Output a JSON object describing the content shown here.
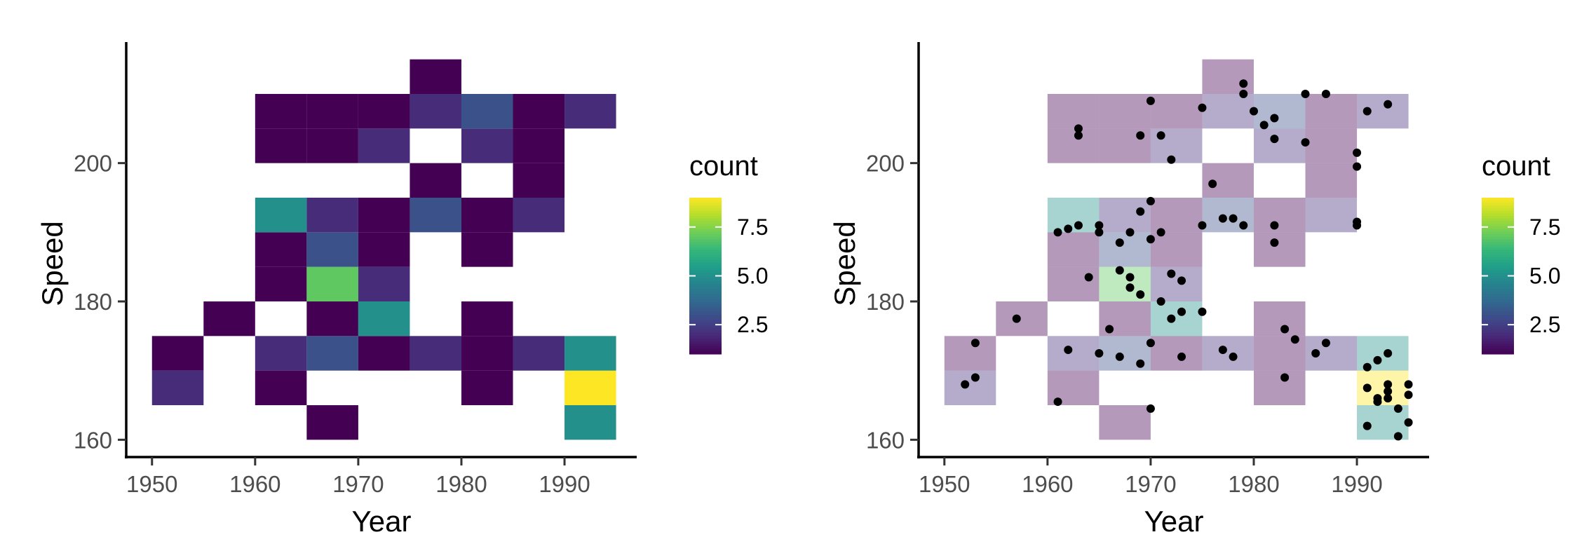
{
  "chart_data": [
    {
      "type": "heatmap",
      "xlabel": "Year",
      "ylabel": "Speed",
      "x_ticks": [
        1950,
        1960,
        1970,
        1980,
        1990
      ],
      "y_ticks": [
        160,
        180,
        200
      ],
      "xlim": [
        1947.5,
        1997
      ],
      "ylim": [
        157.5,
        217.5
      ],
      "bin_width_x": 5,
      "bin_height_y": 5,
      "legend": {
        "title": "count",
        "labels": [
          "2.5",
          "5.0",
          "7.5"
        ],
        "values": [
          2.5,
          5.0,
          7.5
        ],
        "range": [
          1,
          9
        ],
        "palette": "viridis"
      },
      "grid": false,
      "bins": [
        {
          "x": 1950,
          "y": 165,
          "count": 2
        },
        {
          "x": 1950,
          "y": 170,
          "count": 1
        },
        {
          "x": 1955,
          "y": 175,
          "count": 1
        },
        {
          "x": 1960,
          "y": 170,
          "count": 2
        },
        {
          "x": 1960,
          "y": 165,
          "count": 1
        },
        {
          "x": 1960,
          "y": 180,
          "count": 1
        },
        {
          "x": 1960,
          "y": 185,
          "count": 1
        },
        {
          "x": 1960,
          "y": 190,
          "count": 5
        },
        {
          "x": 1960,
          "y": 200,
          "count": 1
        },
        {
          "x": 1960,
          "y": 205,
          "count": 1
        },
        {
          "x": 1965,
          "y": 160,
          "count": 1
        },
        {
          "x": 1965,
          "y": 170,
          "count": 3
        },
        {
          "x": 1965,
          "y": 175,
          "count": 1
        },
        {
          "x": 1965,
          "y": 180,
          "count": 7
        },
        {
          "x": 1965,
          "y": 185,
          "count": 3
        },
        {
          "x": 1965,
          "y": 190,
          "count": 2
        },
        {
          "x": 1965,
          "y": 200,
          "count": 1
        },
        {
          "x": 1965,
          "y": 205,
          "count": 1
        },
        {
          "x": 1970,
          "y": 170,
          "count": 1
        },
        {
          "x": 1970,
          "y": 175,
          "count": 5
        },
        {
          "x": 1970,
          "y": 180,
          "count": 2
        },
        {
          "x": 1970,
          "y": 185,
          "count": 1
        },
        {
          "x": 1970,
          "y": 190,
          "count": 1
        },
        {
          "x": 1970,
          "y": 200,
          "count": 2
        },
        {
          "x": 1970,
          "y": 205,
          "count": 1
        },
        {
          "x": 1975,
          "y": 170,
          "count": 2
        },
        {
          "x": 1975,
          "y": 190,
          "count": 3
        },
        {
          "x": 1975,
          "y": 195,
          "count": 1
        },
        {
          "x": 1975,
          "y": 205,
          "count": 2
        },
        {
          "x": 1975,
          "y": 210,
          "count": 1
        },
        {
          "x": 1980,
          "y": 165,
          "count": 1
        },
        {
          "x": 1980,
          "y": 170,
          "count": 1
        },
        {
          "x": 1980,
          "y": 175,
          "count": 1
        },
        {
          "x": 1980,
          "y": 185,
          "count": 1
        },
        {
          "x": 1980,
          "y": 190,
          "count": 1
        },
        {
          "x": 1980,
          "y": 200,
          "count": 2
        },
        {
          "x": 1980,
          "y": 205,
          "count": 3
        },
        {
          "x": 1985,
          "y": 170,
          "count": 2
        },
        {
          "x": 1985,
          "y": 190,
          "count": 2
        },
        {
          "x": 1985,
          "y": 195,
          "count": 1
        },
        {
          "x": 1985,
          "y": 200,
          "count": 1
        },
        {
          "x": 1985,
          "y": 205,
          "count": 1
        },
        {
          "x": 1990,
          "y": 160,
          "count": 5
        },
        {
          "x": 1990,
          "y": 165,
          "count": 9
        },
        {
          "x": 1990,
          "y": 170,
          "count": 5
        },
        {
          "x": 1990,
          "y": 205,
          "count": 2
        }
      ]
    },
    {
      "type": "heatmap",
      "overlay": "scatter",
      "tile_alpha": 0.4,
      "xlabel": "Year",
      "ylabel": "Speed",
      "x_ticks": [
        1950,
        1960,
        1970,
        1980,
        1990
      ],
      "y_ticks": [
        160,
        180,
        200
      ],
      "xlim": [
        1947.5,
        1997
      ],
      "ylim": [
        157.5,
        217.5
      ],
      "bin_width_x": 5,
      "bin_height_y": 5,
      "legend": {
        "title": "count",
        "labels": [
          "2.5",
          "5.0",
          "7.5"
        ],
        "values": [
          2.5,
          5.0,
          7.5
        ],
        "range": [
          1,
          9
        ],
        "palette": "viridis"
      },
      "grid": false,
      "bins_same_as_chart": 0,
      "points": [
        [
          1952,
          168
        ],
        [
          1953,
          174
        ],
        [
          1953,
          169
        ],
        [
          1957,
          177.5
        ],
        [
          1961,
          165.5
        ],
        [
          1961,
          190
        ],
        [
          1962,
          173
        ],
        [
          1962,
          190.5
        ],
        [
          1963,
          205
        ],
        [
          1963,
          204
        ],
        [
          1963,
          191
        ],
        [
          1964,
          183.5
        ],
        [
          1965,
          191
        ],
        [
          1965,
          190
        ],
        [
          1965,
          172.5
        ],
        [
          1966,
          176
        ],
        [
          1967,
          172
        ],
        [
          1967,
          188.5
        ],
        [
          1967,
          184.5
        ],
        [
          1968,
          190
        ],
        [
          1968,
          183.5
        ],
        [
          1968,
          182
        ],
        [
          1969,
          181
        ],
        [
          1969,
          193
        ],
        [
          1969,
          171
        ],
        [
          1969,
          204
        ],
        [
          1970,
          209
        ],
        [
          1970,
          189
        ],
        [
          1970,
          194.5
        ],
        [
          1970,
          174
        ],
        [
          1970,
          164.5
        ],
        [
          1971,
          204
        ],
        [
          1971,
          190
        ],
        [
          1971,
          180
        ],
        [
          1972,
          200.5
        ],
        [
          1972,
          177.5
        ],
        [
          1972,
          184
        ],
        [
          1973,
          183
        ],
        [
          1973,
          178.5
        ],
        [
          1973,
          172
        ],
        [
          1975,
          178.5
        ],
        [
          1975,
          191
        ],
        [
          1975,
          208
        ],
        [
          1976,
          197
        ],
        [
          1977,
          192
        ],
        [
          1977,
          173
        ],
        [
          1978,
          192
        ],
        [
          1978,
          172
        ],
        [
          1979,
          191
        ],
        [
          1979,
          211.5
        ],
        [
          1979,
          210
        ],
        [
          1980,
          207.5
        ],
        [
          1981,
          205.5
        ],
        [
          1982,
          206.5
        ],
        [
          1982,
          203.5
        ],
        [
          1982,
          191
        ],
        [
          1982,
          188.5
        ],
        [
          1983,
          176
        ],
        [
          1983,
          169
        ],
        [
          1984,
          174.5
        ],
        [
          1985,
          210
        ],
        [
          1985,
          203
        ],
        [
          1986,
          172.5
        ],
        [
          1987,
          210
        ],
        [
          1987,
          174
        ],
        [
          1990,
          191
        ],
        [
          1990,
          191.5
        ],
        [
          1990,
          201.5
        ],
        [
          1990,
          199.5
        ],
        [
          1991,
          207.5
        ],
        [
          1991,
          170.5
        ],
        [
          1991,
          167.5
        ],
        [
          1991,
          162
        ],
        [
          1992,
          171.5
        ],
        [
          1992,
          166
        ],
        [
          1992,
          165.5
        ],
        [
          1993,
          172.5
        ],
        [
          1993,
          168
        ],
        [
          1993,
          166
        ],
        [
          1993,
          167
        ],
        [
          1993,
          208.5
        ],
        [
          1994,
          164.5
        ],
        [
          1994,
          160.5
        ],
        [
          1995,
          168
        ],
        [
          1995,
          166.5
        ],
        [
          1995,
          162.5
        ]
      ]
    }
  ]
}
